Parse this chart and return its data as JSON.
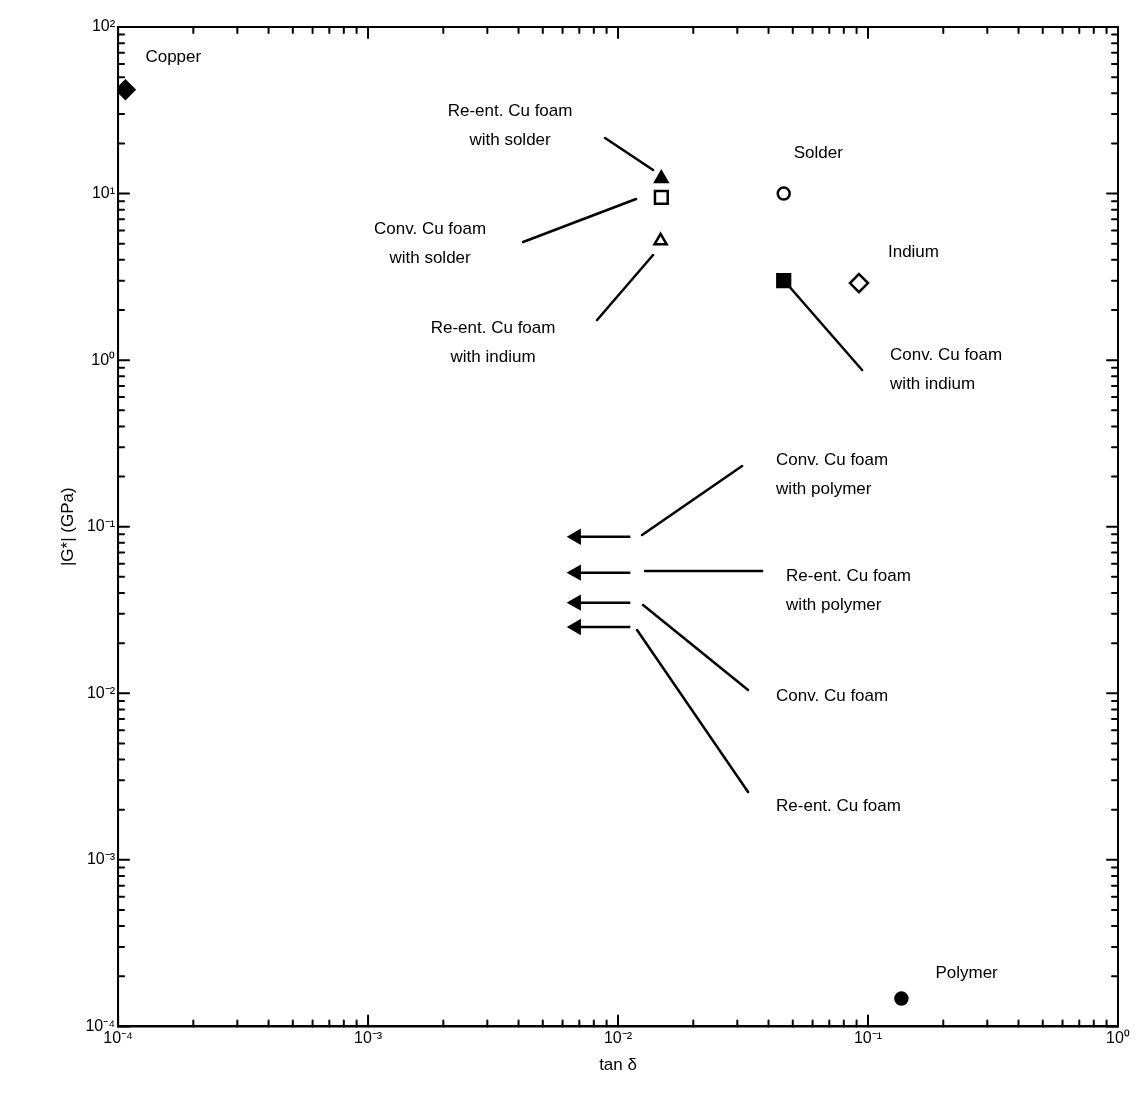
{
  "chart_data": {
    "type": "scatter",
    "xlabel": "tan δ",
    "ylabel": "|G*| (GPa)",
    "log": "xy",
    "grid": false,
    "legend": false,
    "xlim": [
      0.0001,
      1
    ],
    "ylim": [
      0.0001,
      100
    ],
    "xticks": [
      {
        "value": 0.0001,
        "label": "10⁻⁴"
      },
      {
        "value": 0.0002,
        "label": null
      },
      {
        "value": 0.0003,
        "label": null
      },
      {
        "value": 0.0004,
        "label": null
      },
      {
        "value": 0.0005,
        "label": null
      },
      {
        "value": 0.0006,
        "label": null
      },
      {
        "value": 0.0007,
        "label": null
      },
      {
        "value": 0.0008,
        "label": null
      },
      {
        "value": 0.0009,
        "label": null
      },
      {
        "value": 0.001,
        "label": "10⁻³"
      },
      {
        "value": 0.002,
        "label": null
      },
      {
        "value": 0.003,
        "label": null
      },
      {
        "value": 0.004,
        "label": null
      },
      {
        "value": 0.005,
        "label": null
      },
      {
        "value": 0.006,
        "label": null
      },
      {
        "value": 0.007,
        "label": null
      },
      {
        "value": 0.008,
        "label": null
      },
      {
        "value": 0.009,
        "label": null
      },
      {
        "value": 0.01,
        "label": "10⁻²"
      },
      {
        "value": 0.02,
        "label": null
      },
      {
        "value": 0.03,
        "label": null
      },
      {
        "value": 0.04,
        "label": null
      },
      {
        "value": 0.05,
        "label": null
      },
      {
        "value": 0.06,
        "label": null
      },
      {
        "value": 0.07,
        "label": null
      },
      {
        "value": 0.08,
        "label": null
      },
      {
        "value": 0.09,
        "label": null
      },
      {
        "value": 0.1,
        "label": "10⁻¹"
      },
      {
        "value": 0.2,
        "label": null
      },
      {
        "value": 0.3,
        "label": null
      },
      {
        "value": 0.4,
        "label": null
      },
      {
        "value": 0.5,
        "label": null
      },
      {
        "value": 0.6,
        "label": null
      },
      {
        "value": 0.7,
        "label": null
      },
      {
        "value": 0.8,
        "label": null
      },
      {
        "value": 0.9,
        "label": null
      },
      {
        "value": 1,
        "label": "10⁰"
      }
    ],
    "yticks": [
      {
        "value": 0.0001,
        "label": "10⁻⁴"
      },
      {
        "value": 0.0002,
        "label": null
      },
      {
        "value": 0.0003,
        "label": null
      },
      {
        "value": 0.0004,
        "label": null
      },
      {
        "value": 0.0005,
        "label": null
      },
      {
        "value": 0.0006,
        "label": null
      },
      {
        "value": 0.0007,
        "label": null
      },
      {
        "value": 0.0008,
        "label": null
      },
      {
        "value": 0.0009,
        "label": null
      },
      {
        "value": 0.001,
        "label": "10⁻³"
      },
      {
        "value": 0.002,
        "label": null
      },
      {
        "value": 0.003,
        "label": null
      },
      {
        "value": 0.004,
        "label": null
      },
      {
        "value": 0.005,
        "label": null
      },
      {
        "value": 0.006,
        "label": null
      },
      {
        "value": 0.007,
        "label": null
      },
      {
        "value": 0.008,
        "label": null
      },
      {
        "value": 0.009,
        "label": null
      },
      {
        "value": 0.01,
        "label": "10⁻²"
      },
      {
        "value": 0.02,
        "label": null
      },
      {
        "value": 0.03,
        "label": null
      },
      {
        "value": 0.04,
        "label": null
      },
      {
        "value": 0.05,
        "label": null
      },
      {
        "value": 0.06,
        "label": null
      },
      {
        "value": 0.07,
        "label": null
      },
      {
        "value": 0.08,
        "label": null
      },
      {
        "value": 0.09,
        "label": null
      },
      {
        "value": 0.1,
        "label": "10⁻¹"
      },
      {
        "value": 0.2,
        "label": null
      },
      {
        "value": 0.3,
        "label": null
      },
      {
        "value": 0.4,
        "label": null
      },
      {
        "value": 0.5,
        "label": null
      },
      {
        "value": 0.6,
        "label": null
      },
      {
        "value": 0.7,
        "label": null
      },
      {
        "value": 0.8,
        "label": null
      },
      {
        "value": 0.9,
        "label": null
      },
      {
        "value": 1,
        "label": "10⁰"
      },
      {
        "value": 2,
        "label": null
      },
      {
        "value": 3,
        "label": null
      },
      {
        "value": 4,
        "label": null
      },
      {
        "value": 5,
        "label": null
      },
      {
        "value": 6,
        "label": null
      },
      {
        "value": 7,
        "label": null
      },
      {
        "value": 8,
        "label": null
      },
      {
        "value": 9,
        "label": null
      },
      {
        "value": 10,
        "label": "10¹"
      },
      {
        "value": 20,
        "label": null
      },
      {
        "value": 30,
        "label": null
      },
      {
        "value": 40,
        "label": null
      },
      {
        "value": 50,
        "label": null
      },
      {
        "value": 60,
        "label": null
      },
      {
        "value": 70,
        "label": null
      },
      {
        "value": 80,
        "label": null
      },
      {
        "value": 90,
        "label": null
      },
      {
        "value": 100,
        "label": "10²"
      }
    ],
    "series": [
      {
        "color": "#000000",
        "marker": "diamond",
        "x": [
          0.000107
        ],
        "values": [
          42
        ]
      },
      {
        "color": "#000000",
        "marker": "triangle",
        "x": [
          0.0149
        ],
        "values": [
          12.3
        ]
      },
      {
        "color": "#000000",
        "marker": "square",
        "x": [
          0.0149
        ],
        "values": [
          9.5
        ]
      },
      {
        "color": "#000000",
        "marker": "triangle",
        "x": [
          0.0148
        ],
        "values": [
          5.2
        ]
      },
      {
        "color": "#000000",
        "marker": "circle",
        "x": [
          0.046
        ],
        "values": [
          10
        ]
      },
      {
        "color": "#000000",
        "marker": "diamond",
        "x": [
          0.092
        ],
        "values": [
          2.9
        ]
      },
      {
        "color": "#000000",
        "marker": "square",
        "x": [
          0.046
        ],
        "values": [
          3.0
        ]
      },
      {
        "color": "#000000",
        "marker": "circle",
        "x": [
          0.136
        ],
        "values": [
          0.000147
        ]
      },
      {
        "type": "line",
        "color": "#000000",
        "marker": "triangle",
        "x": [
          0.0068,
          0.0112
        ],
        "values": [
          0.087,
          0.087
        ]
      },
      {
        "type": "line",
        "color": "#000000",
        "marker": "triangle",
        "x": [
          0.0068,
          0.0112
        ],
        "values": [
          0.053,
          0.053
        ]
      },
      {
        "type": "line",
        "color": "#000000",
        "marker": "triangle",
        "x": [
          0.0068,
          0.0112
        ],
        "values": [
          0.035,
          0.035
        ]
      },
      {
        "type": "line",
        "color": "#000000",
        "marker": "triangle",
        "x": [
          0.0068,
          0.0112
        ],
        "values": [
          0.025,
          0.025
        ]
      }
    ],
    "annotations": [
      {
        "text": "Copper",
        "x": 0.000107,
        "y": 42
      },
      "Re-ent. Cu foam with solder",
      "Conv. Cu foam with solder",
      "Re-ent. Cu foam with indium",
      {
        "text": "Solder",
        "x": 0.046,
        "y": 10
      },
      {
        "text": "Indium",
        "x": 0.092,
        "y": 2.9
      },
      "Conv. Cu foam with indium",
      {
        "text": "Polymer",
        "x": 0.136,
        "y": 0.000147
      },
      "Conv. Cu foam with polymer",
      "Re-ent. Cu foam with polymer",
      "Conv. Cu foam",
      "Re-ent. Cu foam"
    ]
  }
}
